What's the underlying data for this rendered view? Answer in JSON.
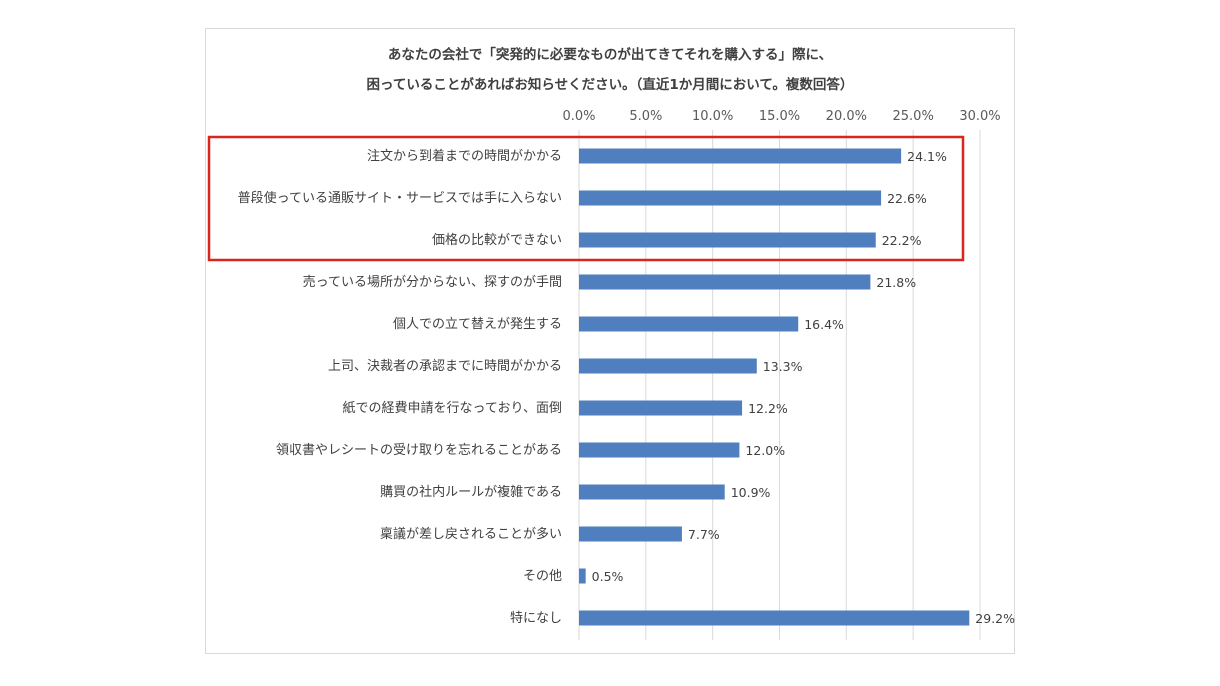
{
  "chart_data": {
    "type": "bar",
    "orientation": "horizontal",
    "title_lines": [
      "あなたの会社で「突発的に必要なものが出てきてそれを購入する」際に、",
      "困っていることがあればお知らせください。（直近1か月間において。複数回答）"
    ],
    "categories": [
      "注文から到着までの時間がかかる",
      "普段使っている通販サイト・サービスでは手に入らない",
      "価格の比較ができない",
      "売っている場所が分からない、探すのが手間",
      "個人での立て替えが発生する",
      "上司、決裁者の承認までに時間がかかる",
      "紙での経費申請を行なっており、面倒",
      "領収書やレシートの受け取りを忘れることがある",
      "購買の社内ルールが複雑である",
      "稟議が差し戻されることが多い",
      "その他",
      "特になし"
    ],
    "values": [
      24.1,
      22.6,
      22.2,
      21.8,
      16.4,
      13.3,
      12.2,
      12.0,
      10.9,
      7.7,
      0.5,
      29.2
    ],
    "value_labels": [
      "24.1%",
      "22.6%",
      "22.2%",
      "21.8%",
      "16.4%",
      "13.3%",
      "12.2%",
      "12.0%",
      "10.9%",
      "7.7%",
      "0.5%",
      "29.2%"
    ],
    "x_ticks": [
      "0.0%",
      "5.0%",
      "10.0%",
      "15.0%",
      "20.0%",
      "25.0%",
      "30.0%"
    ],
    "xlim": [
      0,
      30
    ],
    "x_axis_position": "top",
    "grid": true,
    "highlight_categories": [
      0,
      1,
      2
    ],
    "colors": {
      "bar": "#4f7fbf",
      "highlight_box": "#d9261c",
      "grid": "#d9d9d9"
    }
  }
}
